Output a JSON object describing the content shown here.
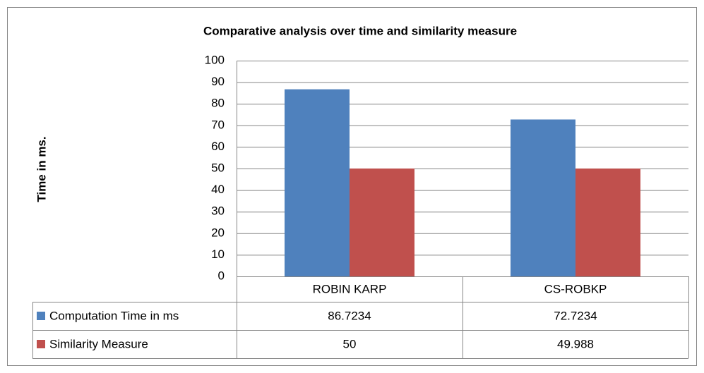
{
  "chart_data": {
    "type": "bar",
    "title": "Comparative analysis over time and similarity measure",
    "y_label": "Time in ms.",
    "categories": [
      "ROBIN KARP",
      "CS-ROBKP"
    ],
    "series": [
      {
        "name": "Computation Time in ms",
        "color": "#4f81bd",
        "values": [
          86.7234,
          72.7234
        ]
      },
      {
        "name": "Similarity Measure",
        "color": "#c0504d",
        "values": [
          50,
          49.988
        ]
      }
    ],
    "ylim": [
      0,
      100
    ],
    "yticks": [
      0,
      10,
      20,
      30,
      40,
      50,
      60,
      70,
      80,
      90,
      100
    ],
    "grid": true,
    "data_table": true
  }
}
